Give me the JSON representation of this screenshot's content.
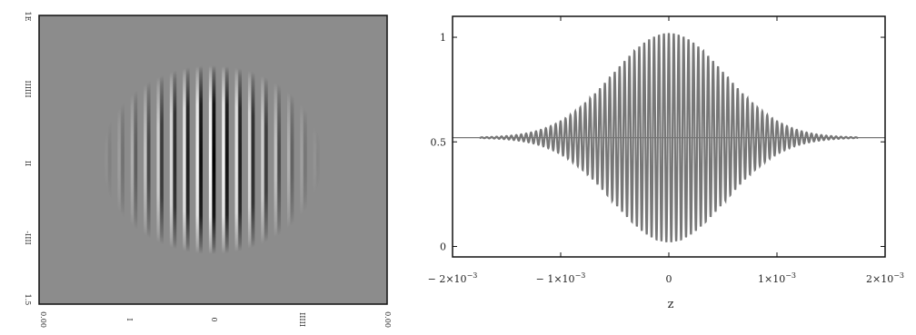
{
  "chart_data": [
    {
      "type": "heatmap",
      "description_colormap": "grayscale",
      "pattern": "vertical interference fringes within circular gaussian envelope",
      "fringe_count_visible": 17,
      "background_value": 0.5,
      "tick_labels_y": [
        "1E",
        "IIIIII",
        "II",
        "-IIII",
        "1.5"
      ],
      "tick_labels_x": [
        "0.00",
        "I",
        "0",
        "IIIII",
        "0.00"
      ],
      "colors": {
        "background": "#8c8c8c",
        "frame": "#111111"
      }
    },
    {
      "type": "line",
      "xlabel": "z",
      "ylabel": "",
      "xlim": [
        -0.002,
        0.002
      ],
      "ylim": [
        -0.05,
        1.1
      ],
      "x_ticks": [
        {
          "value": -0.002,
          "mant": "− 2×10",
          "exp": "−3"
        },
        {
          "value": -0.001,
          "mant": "− 1×10",
          "exp": "−3"
        },
        {
          "value": 0,
          "mant": "0",
          "exp": ""
        },
        {
          "value": 0.001,
          "mant": "1×10",
          "exp": "−3"
        },
        {
          "value": 0.002,
          "mant": "2×10",
          "exp": "−3"
        }
      ],
      "y_ticks": [
        {
          "value": 0,
          "label": "0"
        },
        {
          "value": 0.5,
          "label": "0.5"
        },
        {
          "value": 1,
          "label": "1"
        }
      ],
      "baseline": 0.52,
      "envelope": {
        "amplitude": 0.5,
        "center": 0,
        "width_sigma": 0.00052
      },
      "fringe_period": 4.55e-05,
      "x_start": -0.00175,
      "x_end": 0.00175,
      "colors": {
        "signal": "#777777",
        "baseline": "#777777",
        "frame": "#111111"
      }
    }
  ]
}
